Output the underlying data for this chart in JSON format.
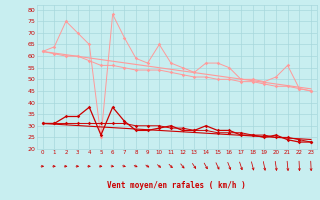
{
  "xlabel": "Vent moyen/en rafales ( km/h )",
  "bg_color": "#c8eef0",
  "grid_color": "#a8d8dc",
  "line_color_dark": "#cc0000",
  "line_color_light": "#ff9999",
  "ylim": [
    20,
    82
  ],
  "xlim": [
    -0.5,
    23.5
  ],
  "yticks": [
    20,
    25,
    30,
    35,
    40,
    45,
    50,
    55,
    60,
    65,
    70,
    75,
    80
  ],
  "xticks": [
    0,
    1,
    2,
    3,
    4,
    5,
    6,
    7,
    8,
    9,
    10,
    11,
    12,
    13,
    14,
    15,
    16,
    17,
    18,
    19,
    20,
    21,
    22,
    23
  ],
  "hours": [
    0,
    1,
    2,
    3,
    4,
    5,
    6,
    7,
    8,
    9,
    10,
    11,
    12,
    13,
    14,
    15,
    16,
    17,
    18,
    19,
    20,
    21,
    22,
    23
  ],
  "rafales_series": [
    62,
    64,
    75,
    70,
    65,
    25,
    78,
    68,
    59,
    57,
    65,
    57,
    55,
    53,
    57,
    57,
    55,
    50,
    50,
    49,
    51,
    56,
    46,
    45
  ],
  "moy_series": [
    62,
    61,
    60,
    60,
    58,
    56,
    56,
    55,
    54,
    54,
    54,
    53,
    52,
    51,
    51,
    50,
    50,
    49,
    49,
    48,
    47,
    47,
    46,
    45
  ],
  "trend1_series": [
    62,
    61.3,
    60.6,
    59.9,
    59.2,
    58.5,
    57.8,
    57.1,
    56.4,
    55.7,
    55.0,
    54.3,
    53.6,
    52.9,
    52.2,
    51.5,
    50.8,
    50.1,
    49.4,
    48.7,
    48.0,
    47.3,
    46.6,
    45.9
  ],
  "vent_moy_series": [
    31,
    31,
    34,
    34,
    38,
    26,
    38,
    32,
    28,
    28,
    29,
    30,
    28,
    28,
    30,
    28,
    28,
    26,
    26,
    25,
    26,
    24,
    23,
    23
  ],
  "vent_low_series": [
    31,
    31,
    31,
    31,
    31,
    31,
    31,
    31,
    30,
    30,
    30,
    29,
    29,
    28,
    28,
    27,
    27,
    27,
    26,
    26,
    25,
    25,
    24,
    23
  ],
  "vent_trend_series": [
    31,
    30.7,
    30.4,
    30.1,
    29.8,
    29.5,
    29.2,
    28.9,
    28.6,
    28.3,
    28.0,
    27.7,
    27.4,
    27.1,
    26.8,
    26.5,
    26.2,
    25.9,
    25.6,
    25.3,
    25.0,
    24.7,
    24.4,
    24.1
  ],
  "arrow_angles_deg": [
    0,
    0,
    0,
    0,
    0,
    0,
    -5,
    -10,
    -15,
    -20,
    -25,
    -30,
    -35,
    -40,
    -45,
    -50,
    -55,
    -60,
    -65,
    -70,
    -75,
    -80,
    -85,
    -85
  ]
}
